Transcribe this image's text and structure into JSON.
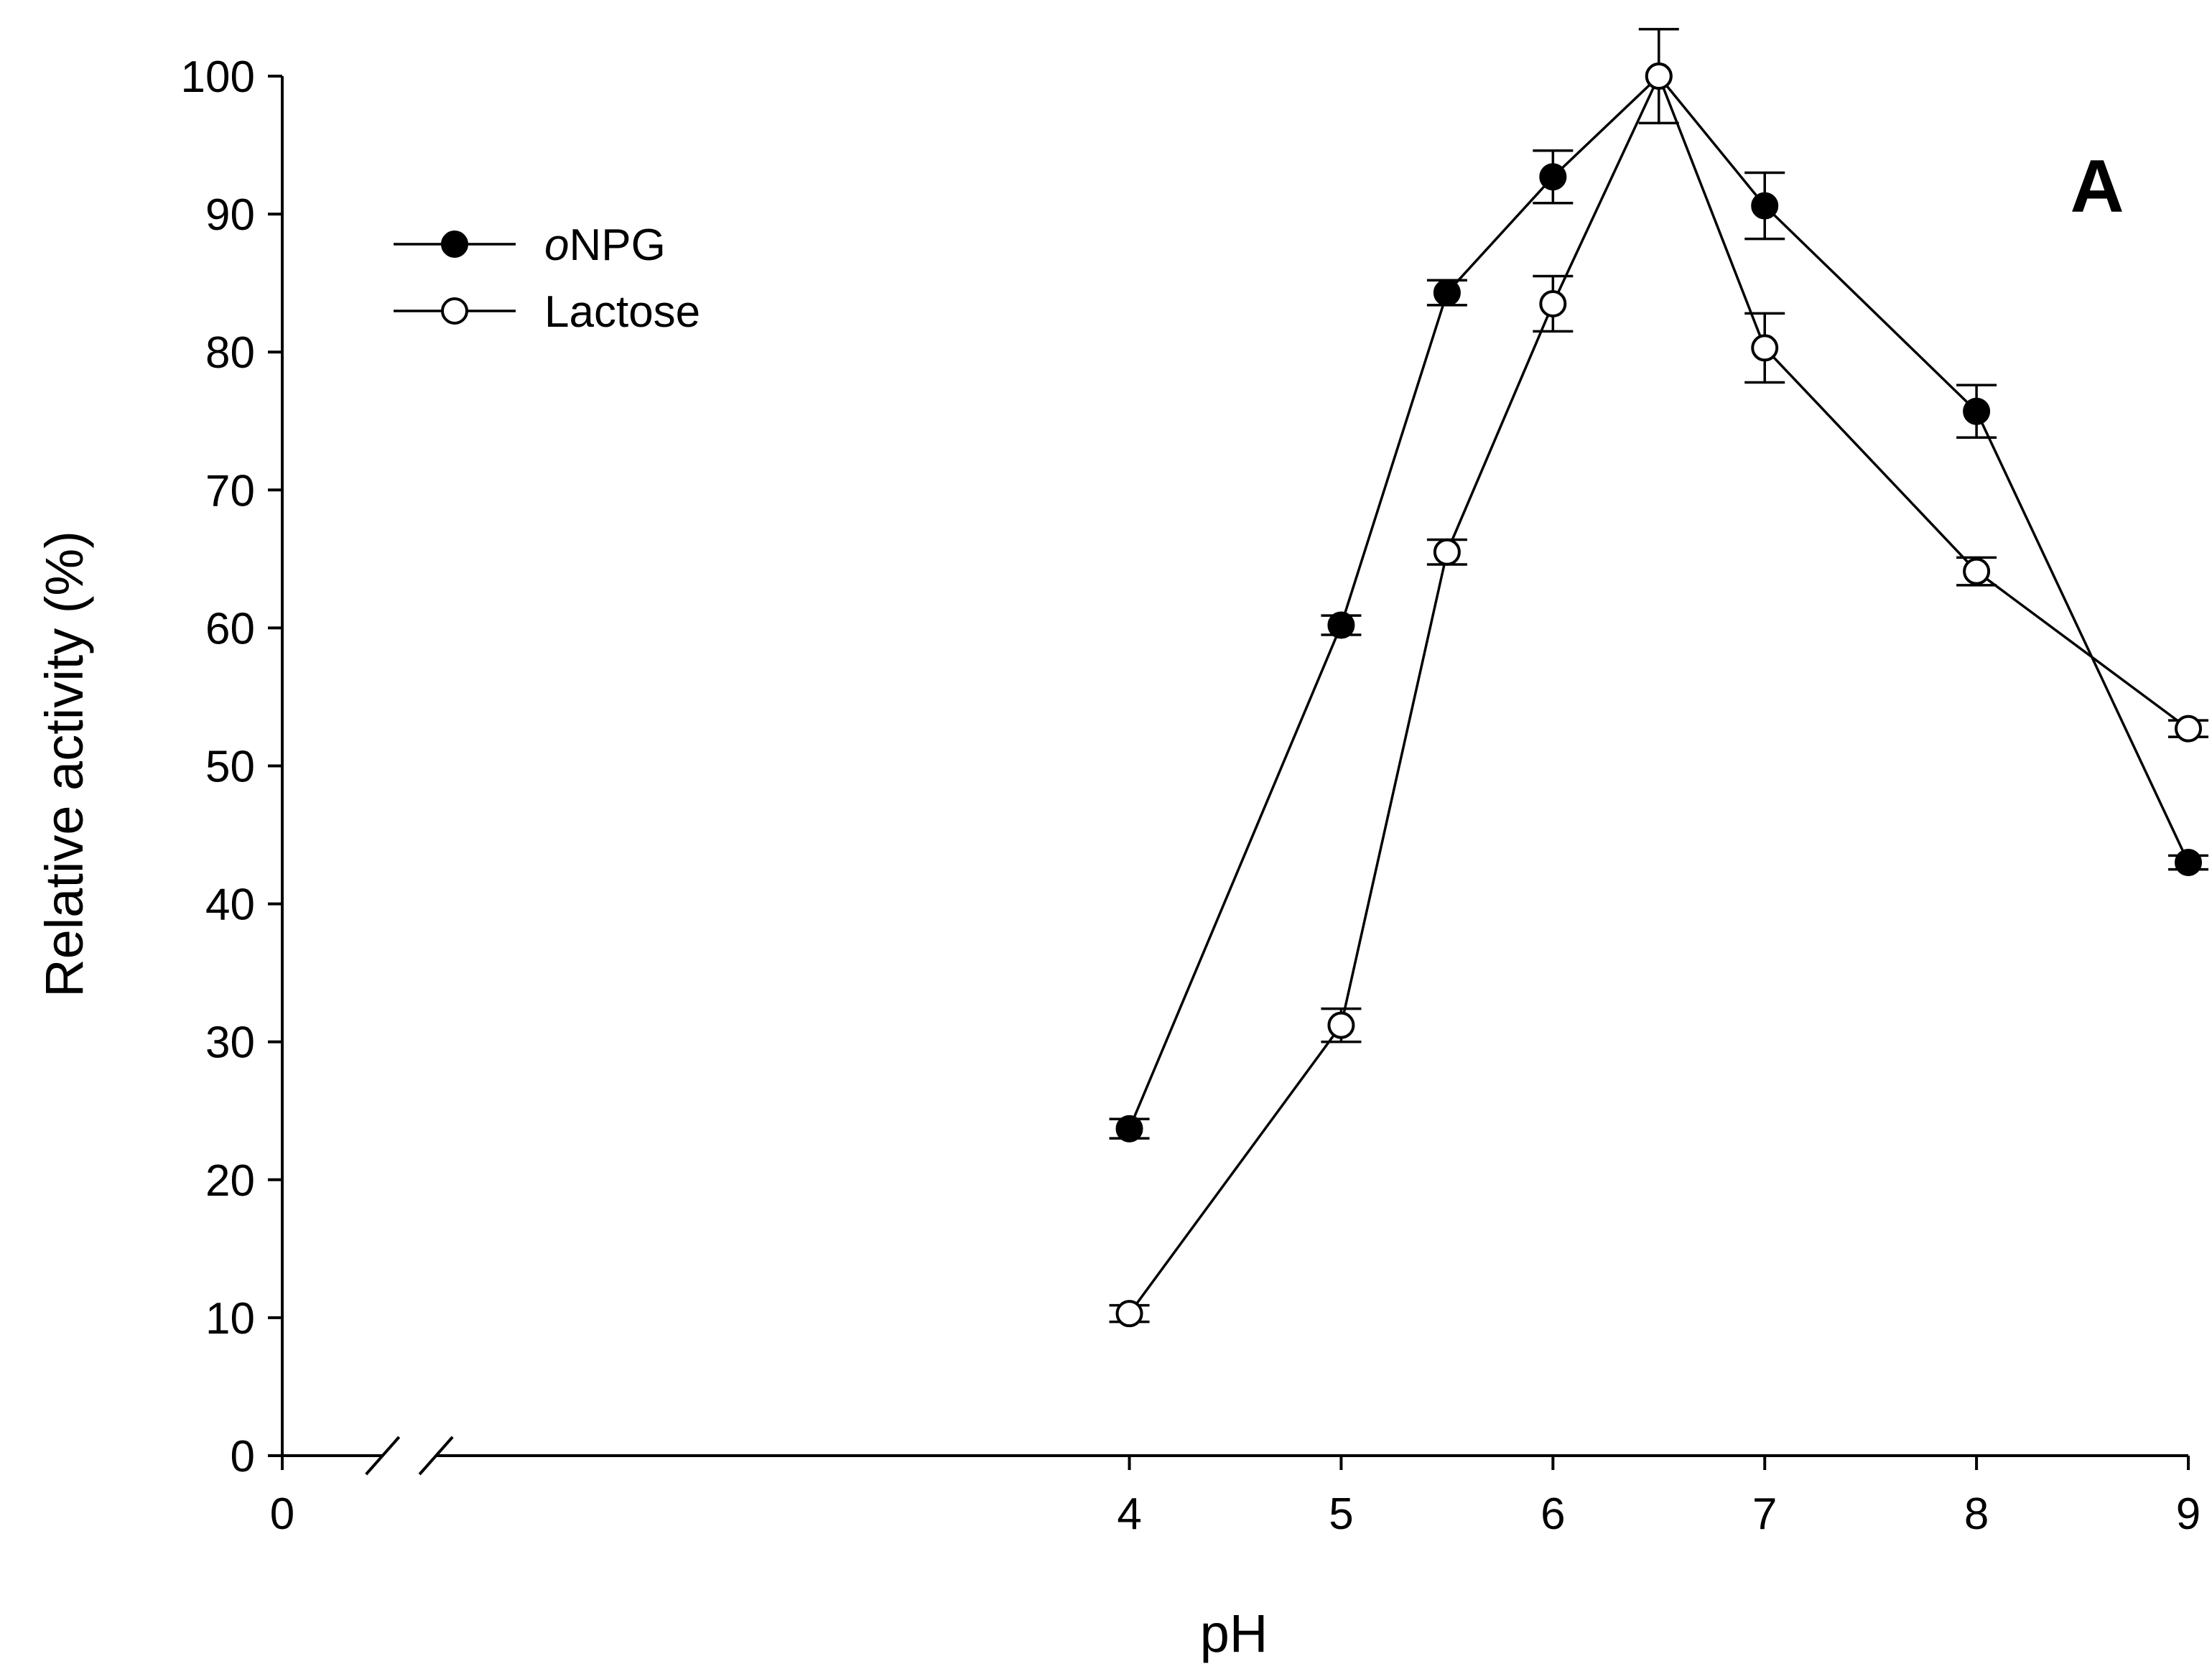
{
  "chart_data": {
    "type": "line",
    "title": "",
    "panel_label": "A",
    "xlabel": "pH",
    "ylabel": "Relative activity (%)",
    "xlim": [
      0,
      9
    ],
    "ylim": [
      0,
      100
    ],
    "x_ticks": [
      0,
      4,
      5,
      6,
      7,
      8,
      9
    ],
    "y_ticks": [
      0,
      10,
      20,
      30,
      40,
      50,
      60,
      70,
      80,
      90,
      100
    ],
    "axis_break": "between 0 and 4",
    "grid": false,
    "legend_position": "top-left",
    "series": [
      {
        "name": "oNPG",
        "name_prefix_italic": "o",
        "name_rest": "NPG",
        "marker": "filled-circle",
        "color": "#000000",
        "x": [
          4,
          5,
          5.5,
          6,
          6.5,
          7,
          8,
          9
        ],
        "y": [
          23.7,
          60.2,
          84.3,
          92.7,
          100,
          90.6,
          75.7,
          43.0
        ],
        "err": [
          0.7,
          0.7,
          0.9,
          1.9,
          0,
          2.4,
          1.9,
          0.5
        ]
      },
      {
        "name": "Lactose",
        "marker": "open-circle",
        "color": "#000000",
        "x": [
          4,
          5,
          5.5,
          6,
          6.5,
          7,
          8,
          9
        ],
        "y": [
          10.3,
          31.2,
          65.5,
          83.5,
          100,
          80.3,
          64.1,
          52.7
        ],
        "err": [
          0.6,
          1.2,
          0.9,
          2.0,
          3.4,
          2.5,
          1.0,
          0.6
        ]
      }
    ]
  }
}
